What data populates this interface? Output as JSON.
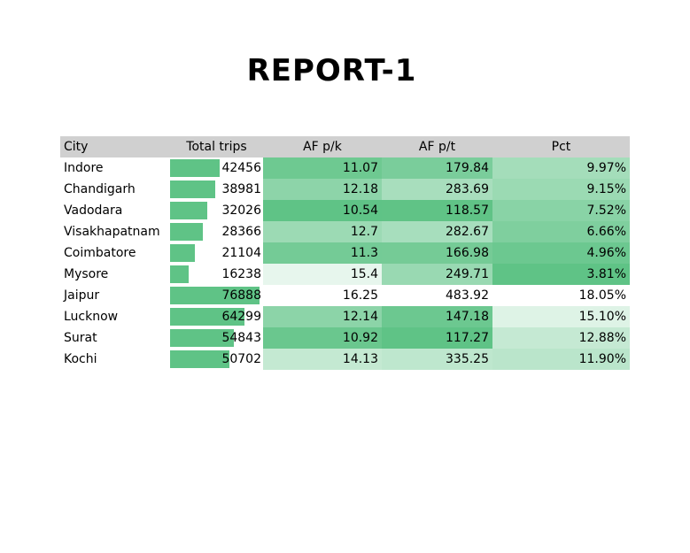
{
  "title": "REPORT-1",
  "columns": [
    "City",
    "Total trips",
    "AF p/k",
    "AF p/t",
    "Pct"
  ],
  "rows": [
    {
      "city": "Indore",
      "trips": "42456",
      "trips_value": 42456,
      "afk": "11.07",
      "afk_value": 11.07,
      "aft": "179.84",
      "aft_value": 179.84,
      "pct": "9.97%",
      "pct_value": 9.97
    },
    {
      "city": "Chandigarh",
      "trips": "38981",
      "trips_value": 38981,
      "afk": "12.18",
      "afk_value": 12.18,
      "aft": "283.69",
      "aft_value": 283.69,
      "pct": "9.15%",
      "pct_value": 9.15
    },
    {
      "city": "Vadodara",
      "trips": "32026",
      "trips_value": 32026,
      "afk": "10.54",
      "afk_value": 10.54,
      "aft": "118.57",
      "aft_value": 118.57,
      "pct": "7.52%",
      "pct_value": 7.52
    },
    {
      "city": "Visakhapatnam",
      "trips": "28366",
      "trips_value": 28366,
      "afk": "12.7",
      "afk_value": 12.7,
      "aft": "282.67",
      "aft_value": 282.67,
      "pct": "6.66%",
      "pct_value": 6.66
    },
    {
      "city": "Coimbatore",
      "trips": "21104",
      "trips_value": 21104,
      "afk": "11.3",
      "afk_value": 11.3,
      "aft": "166.98",
      "aft_value": 166.98,
      "pct": "4.96%",
      "pct_value": 4.96
    },
    {
      "city": "Mysore",
      "trips": "16238",
      "trips_value": 16238,
      "afk": "15.4",
      "afk_value": 15.4,
      "aft": "249.71",
      "aft_value": 249.71,
      "pct": "3.81%",
      "pct_value": 3.81
    },
    {
      "city": "Jaipur",
      "trips": "76888",
      "trips_value": 76888,
      "afk": "16.25",
      "afk_value": 16.25,
      "aft": "483.92",
      "aft_value": 483.92,
      "pct": "18.05%",
      "pct_value": 18.05
    },
    {
      "city": "Lucknow",
      "trips": "64299",
      "trips_value": 64299,
      "afk": "12.14",
      "afk_value": 12.14,
      "aft": "147.18",
      "aft_value": 147.18,
      "pct": "15.10%",
      "pct_value": 15.1
    },
    {
      "city": "Surat",
      "trips": "54843",
      "trips_value": 54843,
      "afk": "10.92",
      "afk_value": 10.92,
      "aft": "117.27",
      "aft_value": 117.27,
      "pct": "12.88%",
      "pct_value": 12.88
    },
    {
      "city": "Kochi",
      "trips": "50702",
      "trips_value": 50702,
      "afk": "14.13",
      "afk_value": 14.13,
      "aft": "335.25",
      "aft_value": 335.25,
      "pct": "11.90%",
      "pct_value": 11.9
    }
  ],
  "colors": {
    "header_bg": "#d0d0d0",
    "bar": "#5fc386",
    "scale_high": "#5fc386",
    "scale_low": "#ffffff"
  }
}
